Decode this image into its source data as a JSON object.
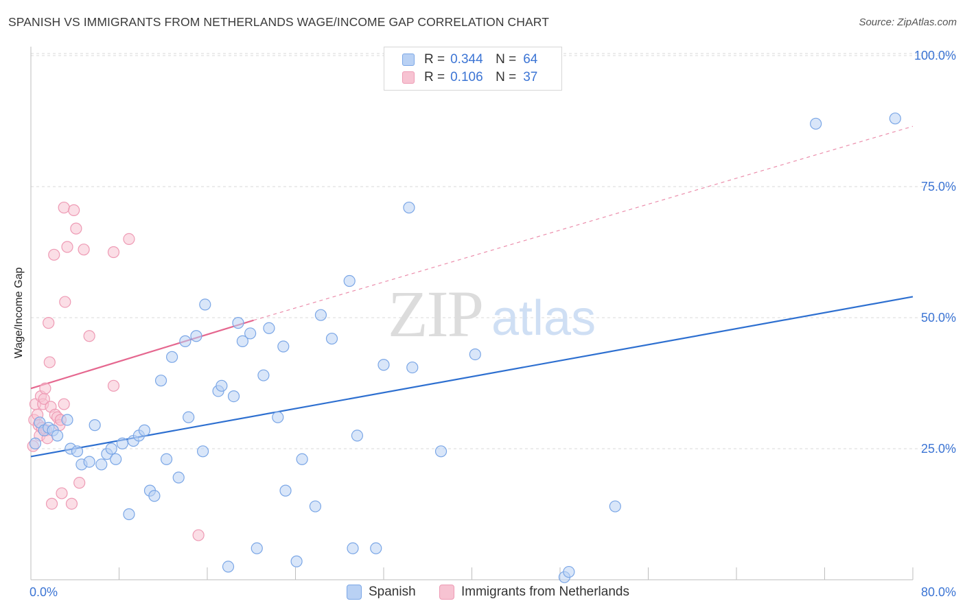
{
  "title": "SPANISH VS IMMIGRANTS FROM NETHERLANDS WAGE/INCOME GAP CORRELATION CHART",
  "source": "Source: ZipAtlas.com",
  "watermark": {
    "zip": "ZIP",
    "atlas": "atlas"
  },
  "legend": {
    "rows": [
      {
        "r_label": "R =",
        "r_value": "0.344",
        "n_label": "N =",
        "n_value": "64"
      },
      {
        "r_label": "R =",
        "r_value": "0.106",
        "n_label": "N =",
        "n_value": "37"
      }
    ]
  },
  "bottom_legend": [
    "Spanish",
    "Immigrants from Netherlands"
  ],
  "colors": {
    "spanish_fill": "#b9d1f4",
    "spanish_stroke": "#7aa6e6",
    "spanish_line": "#2d6fd0",
    "neth_fill": "#f7c3d2",
    "neth_stroke": "#ee9ab4",
    "neth_line": "#e5678f",
    "axis_text": "#3b74d4",
    "grid": "#d9d9d9"
  },
  "chart_data": {
    "type": "scatter",
    "title": "SPANISH VS IMMIGRANTS FROM NETHERLANDS WAGE/INCOME GAP CORRELATION CHART",
    "xlabel": "",
    "ylabel": "Wage/Income Gap",
    "xlim": [
      0,
      80
    ],
    "ylim": [
      0,
      105
    ],
    "x_tick_labels": [
      "0.0%",
      "80.0%"
    ],
    "y_ticks": [
      25,
      50,
      75,
      100
    ],
    "y_tick_labels": [
      "25.0%",
      "50.0%",
      "75.0%",
      "100.0%"
    ],
    "grid": "horizontal dashed",
    "legend_position": "top-center",
    "series": [
      {
        "name": "Spanish",
        "R": 0.344,
        "N": 64,
        "trend": {
          "x": [
            0,
            80
          ],
          "y": [
            23.5,
            54.0
          ],
          "style": "solid"
        },
        "points": [
          [
            0.4,
            26
          ],
          [
            0.8,
            30
          ],
          [
            1.2,
            28.5
          ],
          [
            1.6,
            29
          ],
          [
            2.0,
            28.5
          ],
          [
            2.4,
            27.5
          ],
          [
            3.3,
            30.5
          ],
          [
            3.6,
            25
          ],
          [
            4.2,
            24.5
          ],
          [
            4.6,
            22
          ],
          [
            5.3,
            22.5
          ],
          [
            5.8,
            29.5
          ],
          [
            6.4,
            22
          ],
          [
            6.9,
            24
          ],
          [
            7.3,
            25
          ],
          [
            7.7,
            23
          ],
          [
            8.3,
            26
          ],
          [
            8.9,
            12.5
          ],
          [
            9.3,
            26.5
          ],
          [
            9.8,
            27.5
          ],
          [
            10.3,
            28.5
          ],
          [
            10.8,
            17
          ],
          [
            11.2,
            16
          ],
          [
            11.8,
            38
          ],
          [
            12.3,
            23
          ],
          [
            12.8,
            42.5
          ],
          [
            13.4,
            19.5
          ],
          [
            14.0,
            45.5
          ],
          [
            14.3,
            31
          ],
          [
            15.0,
            46.5
          ],
          [
            15.6,
            24.5
          ],
          [
            15.8,
            52.5
          ],
          [
            17.0,
            36
          ],
          [
            17.3,
            37
          ],
          [
            17.9,
            2.5
          ],
          [
            18.4,
            35
          ],
          [
            18.8,
            49
          ],
          [
            19.2,
            45.5
          ],
          [
            19.9,
            47
          ],
          [
            20.5,
            6
          ],
          [
            21.1,
            39
          ],
          [
            21.6,
            48
          ],
          [
            22.4,
            31
          ],
          [
            22.9,
            44.5
          ],
          [
            23.1,
            17
          ],
          [
            24.1,
            3.5
          ],
          [
            24.6,
            23
          ],
          [
            25.8,
            14
          ],
          [
            26.3,
            50.5
          ],
          [
            27.3,
            46
          ],
          [
            28.9,
            57
          ],
          [
            29.2,
            6
          ],
          [
            29.6,
            27.5
          ],
          [
            31.3,
            6
          ],
          [
            32.0,
            41
          ],
          [
            34.3,
            71
          ],
          [
            34.6,
            40.5
          ],
          [
            37.2,
            24.5
          ],
          [
            40.3,
            43
          ],
          [
            48.4,
            0.5
          ],
          [
            48.8,
            1.5
          ],
          [
            53.0,
            14
          ],
          [
            71.2,
            87
          ],
          [
            78.4,
            88
          ]
        ]
      },
      {
        "name": "Immigrants from Netherlands",
        "R": 0.106,
        "N": 37,
        "trend": {
          "x": [
            0,
            20.2
          ],
          "y": [
            36.5,
            49.5
          ],
          "style": "solid",
          "extension_to_x": 80,
          "extension_y": 86.5
        },
        "points": [
          [
            0.2,
            25.5
          ],
          [
            0.3,
            30.5
          ],
          [
            0.4,
            33.5
          ],
          [
            0.6,
            31.5
          ],
          [
            0.7,
            29.5
          ],
          [
            0.8,
            27.5
          ],
          [
            0.9,
            35
          ],
          [
            1.0,
            29
          ],
          [
            1.1,
            33.5
          ],
          [
            1.2,
            34.5
          ],
          [
            1.3,
            36.5
          ],
          [
            1.4,
            28.5
          ],
          [
            1.5,
            27
          ],
          [
            1.6,
            49
          ],
          [
            1.7,
            41.5
          ],
          [
            1.8,
            33
          ],
          [
            1.9,
            14.5
          ],
          [
            2.1,
            62
          ],
          [
            2.2,
            31.5
          ],
          [
            2.4,
            31
          ],
          [
            2.6,
            29.5
          ],
          [
            2.7,
            30.5
          ],
          [
            2.8,
            16.5
          ],
          [
            3.0,
            33.5
          ],
          [
            3.0,
            71
          ],
          [
            3.1,
            53
          ],
          [
            3.3,
            63.5
          ],
          [
            3.7,
            14.5
          ],
          [
            3.9,
            70.5
          ],
          [
            4.1,
            67
          ],
          [
            4.4,
            18.5
          ],
          [
            4.8,
            63
          ],
          [
            5.3,
            46.5
          ],
          [
            7.5,
            37
          ],
          [
            7.5,
            62.5
          ],
          [
            8.9,
            65
          ],
          [
            15.2,
            8.5
          ]
        ]
      }
    ]
  }
}
